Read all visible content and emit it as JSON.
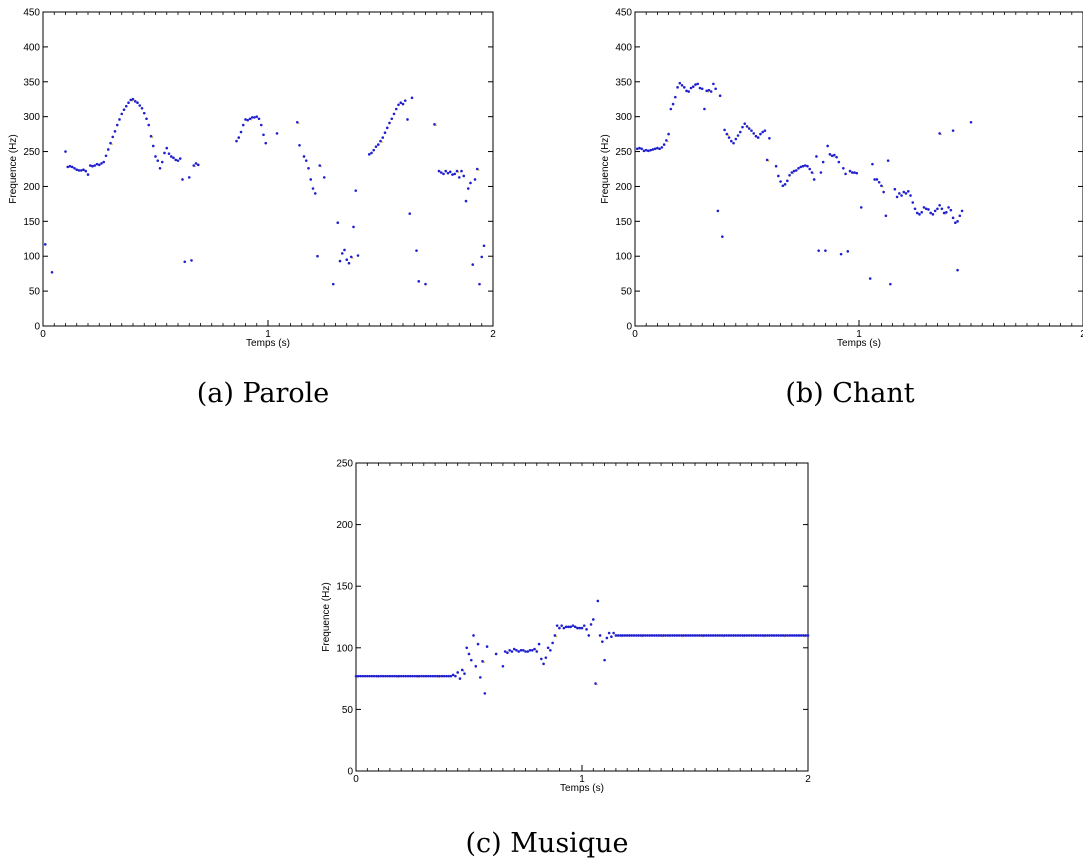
{
  "captions": {
    "a": "(a) Parole",
    "b": "(b) Chant",
    "c": "(c) Musique"
  },
  "colors": {
    "points": "#1f1fd0",
    "stray_points": "#e0b020",
    "axes": "#000000"
  },
  "chart_data": [
    {
      "id": "a",
      "type": "scatter",
      "xlabel": "Temps (s)",
      "ylabel": "Frequence (Hz)",
      "xlim": [
        0,
        2
      ],
      "ylim": [
        0,
        450
      ],
      "xticks": [
        0,
        1,
        2
      ],
      "yticks": [
        0,
        50,
        100,
        150,
        200,
        250,
        300,
        350,
        400,
        450
      ],
      "grid": false,
      "points": [
        [
          0.01,
          117
        ],
        [
          0.04,
          77
        ],
        [
          0.1,
          250
        ],
        [
          0.11,
          228
        ],
        [
          0.12,
          229
        ],
        [
          0.13,
          228
        ],
        [
          0.14,
          226
        ],
        [
          0.15,
          224
        ],
        [
          0.16,
          223
        ],
        [
          0.17,
          223
        ],
        [
          0.18,
          224
        ],
        [
          0.19,
          222
        ],
        [
          0.2,
          217
        ],
        [
          0.21,
          230
        ],
        [
          0.22,
          229
        ],
        [
          0.23,
          230
        ],
        [
          0.24,
          232
        ],
        [
          0.25,
          231
        ],
        [
          0.26,
          233
        ],
        [
          0.27,
          235
        ],
        [
          0.28,
          244
        ],
        [
          0.29,
          253
        ],
        [
          0.3,
          262
        ],
        [
          0.31,
          271
        ],
        [
          0.32,
          279
        ],
        [
          0.33,
          288
        ],
        [
          0.34,
          296
        ],
        [
          0.35,
          304
        ],
        [
          0.36,
          310
        ],
        [
          0.37,
          315
        ],
        [
          0.38,
          320
        ],
        [
          0.39,
          324
        ],
        [
          0.4,
          325
        ],
        [
          0.41,
          322
        ],
        [
          0.42,
          320
        ],
        [
          0.43,
          316
        ],
        [
          0.44,
          312
        ],
        [
          0.45,
          305
        ],
        [
          0.46,
          297
        ],
        [
          0.47,
          288
        ],
        [
          0.48,
          272
        ],
        [
          0.49,
          258
        ],
        [
          0.5,
          243
        ],
        [
          0.51,
          237
        ],
        [
          0.52,
          226
        ],
        [
          0.53,
          235
        ],
        [
          0.54,
          248
        ],
        [
          0.55,
          255
        ],
        [
          0.56,
          247
        ],
        [
          0.57,
          243
        ],
        [
          0.58,
          241
        ],
        [
          0.59,
          238
        ],
        [
          0.6,
          237
        ],
        [
          0.61,
          240
        ],
        [
          0.62,
          210
        ],
        [
          0.63,
          92
        ],
        [
          0.65,
          213
        ],
        [
          0.66,
          94
        ],
        [
          0.67,
          230
        ],
        [
          0.68,
          233
        ],
        [
          0.69,
          231
        ],
        [
          0.86,
          265
        ],
        [
          0.87,
          270
        ],
        [
          0.88,
          278
        ],
        [
          0.89,
          288
        ],
        [
          0.9,
          296
        ],
        [
          0.91,
          295
        ],
        [
          0.92,
          297
        ],
        [
          0.93,
          299
        ],
        [
          0.94,
          299
        ],
        [
          0.95,
          300
        ],
        [
          0.96,
          297
        ],
        [
          0.97,
          288
        ],
        [
          0.98,
          274
        ],
        [
          0.99,
          262
        ],
        [
          1.04,
          276
        ],
        [
          1.13,
          292
        ],
        [
          1.14,
          259
        ],
        [
          1.16,
          243
        ],
        [
          1.17,
          237
        ],
        [
          1.18,
          226
        ],
        [
          1.19,
          210
        ],
        [
          1.2,
          197
        ],
        [
          1.21,
          190
        ],
        [
          1.22,
          100
        ],
        [
          1.23,
          230
        ],
        [
          1.25,
          213
        ],
        [
          1.29,
          60
        ],
        [
          1.31,
          148
        ],
        [
          1.32,
          93
        ],
        [
          1.33,
          104
        ],
        [
          1.34,
          109
        ],
        [
          1.35,
          95
        ],
        [
          1.36,
          90
        ],
        [
          1.37,
          99
        ],
        [
          1.38,
          142
        ],
        [
          1.39,
          194
        ],
        [
          1.4,
          101
        ],
        [
          1.45,
          246
        ],
        [
          1.46,
          248
        ],
        [
          1.47,
          252
        ],
        [
          1.48,
          257
        ],
        [
          1.49,
          260
        ],
        [
          1.5,
          265
        ],
        [
          1.51,
          270
        ],
        [
          1.52,
          277
        ],
        [
          1.53,
          284
        ],
        [
          1.54,
          291
        ],
        [
          1.55,
          297
        ],
        [
          1.56,
          304
        ],
        [
          1.57,
          311
        ],
        [
          1.58,
          317
        ],
        [
          1.59,
          320
        ],
        [
          1.6,
          318
        ],
        [
          1.61,
          323
        ],
        [
          1.62,
          296
        ],
        [
          1.63,
          161
        ],
        [
          1.64,
          327
        ],
        [
          1.66,
          108
        ],
        [
          1.67,
          64
        ],
        [
          1.7,
          60
        ],
        [
          1.74,
          289
        ],
        [
          1.76,
          222
        ],
        [
          1.77,
          220
        ],
        [
          1.78,
          218
        ],
        [
          1.79,
          222
        ],
        [
          1.8,
          219
        ],
        [
          1.81,
          221
        ],
        [
          1.82,
          217
        ],
        [
          1.83,
          218
        ],
        [
          1.84,
          222
        ],
        [
          1.85,
          213
        ],
        [
          1.86,
          222
        ],
        [
          1.87,
          215
        ],
        [
          1.88,
          179
        ],
        [
          1.89,
          197
        ],
        [
          1.9,
          205
        ],
        [
          1.91,
          88
        ],
        [
          1.92,
          210
        ],
        [
          1.93,
          225
        ],
        [
          1.94,
          60
        ],
        [
          1.95,
          99
        ],
        [
          1.96,
          115
        ]
      ]
    },
    {
      "id": "b",
      "type": "scatter",
      "xlabel": "Temps (s)",
      "ylabel": "Frequence (Hz)",
      "xlim": [
        0,
        2
      ],
      "ylim": [
        0,
        450
      ],
      "xticks": [
        0,
        1,
        2
      ],
      "yticks": [
        0,
        50,
        100,
        150,
        200,
        250,
        300,
        350,
        400,
        450
      ],
      "grid": false,
      "points": [
        [
          0.01,
          254
        ],
        [
          0.02,
          255
        ],
        [
          0.03,
          254
        ],
        [
          0.04,
          251
        ],
        [
          0.05,
          252
        ],
        [
          0.06,
          251
        ],
        [
          0.07,
          252
        ],
        [
          0.08,
          253
        ],
        [
          0.09,
          254
        ],
        [
          0.1,
          255
        ],
        [
          0.11,
          254
        ],
        [
          0.12,
          256
        ],
        [
          0.13,
          260
        ],
        [
          0.14,
          266
        ],
        [
          0.15,
          275
        ],
        [
          0.16,
          311
        ],
        [
          0.17,
          318
        ],
        [
          0.18,
          328
        ],
        [
          0.19,
          342
        ],
        [
          0.2,
          348
        ],
        [
          0.21,
          345
        ],
        [
          0.22,
          342
        ],
        [
          0.23,
          337
        ],
        [
          0.24,
          336
        ],
        [
          0.25,
          341
        ],
        [
          0.26,
          343
        ],
        [
          0.27,
          346
        ],
        [
          0.28,
          347
        ],
        [
          0.29,
          341
        ],
        [
          0.3,
          340
        ],
        [
          0.31,
          311
        ],
        [
          0.32,
          337
        ],
        [
          0.33,
          338
        ],
        [
          0.34,
          336
        ],
        [
          0.35,
          347
        ],
        [
          0.36,
          340
        ],
        [
          0.37,
          165
        ],
        [
          0.38,
          330
        ],
        [
          0.39,
          128
        ],
        [
          0.4,
          281
        ],
        [
          0.41,
          275
        ],
        [
          0.42,
          270
        ],
        [
          0.43,
          265
        ],
        [
          0.44,
          262
        ],
        [
          0.45,
          268
        ],
        [
          0.46,
          273
        ],
        [
          0.47,
          278
        ],
        [
          0.48,
          285
        ],
        [
          0.49,
          290
        ],
        [
          0.5,
          286
        ],
        [
          0.51,
          283
        ],
        [
          0.52,
          280
        ],
        [
          0.53,
          276
        ],
        [
          0.54,
          272
        ],
        [
          0.55,
          270
        ],
        [
          0.56,
          275
        ],
        [
          0.57,
          278
        ],
        [
          0.58,
          280
        ],
        [
          0.59,
          238
        ],
        [
          0.6,
          269
        ],
        [
          0.63,
          229
        ],
        [
          0.64,
          215
        ],
        [
          0.65,
          207
        ],
        [
          0.66,
          201
        ],
        [
          0.67,
          203
        ],
        [
          0.68,
          208
        ],
        [
          0.69,
          216
        ],
        [
          0.7,
          220
        ],
        [
          0.71,
          222
        ],
        [
          0.72,
          223
        ],
        [
          0.73,
          226
        ],
        [
          0.74,
          228
        ],
        [
          0.75,
          229
        ],
        [
          0.76,
          230
        ],
        [
          0.77,
          229
        ],
        [
          0.78,
          225
        ],
        [
          0.79,
          220
        ],
        [
          0.8,
          210
        ],
        [
          0.81,
          243
        ],
        [
          0.82,
          108
        ],
        [
          0.83,
          220
        ],
        [
          0.84,
          235
        ],
        [
          0.85,
          108
        ],
        [
          0.86,
          258
        ],
        [
          0.87,
          246
        ],
        [
          0.88,
          244
        ],
        [
          0.89,
          245
        ],
        [
          0.9,
          242
        ],
        [
          0.91,
          235
        ],
        [
          0.92,
          103
        ],
        [
          0.93,
          226
        ],
        [
          0.94,
          218
        ],
        [
          0.95,
          107
        ],
        [
          0.96,
          222
        ],
        [
          0.97,
          220
        ],
        [
          0.98,
          220
        ],
        [
          0.99,
          219
        ],
        [
          1.01,
          170
        ],
        [
          1.05,
          68
        ],
        [
          1.06,
          232
        ],
        [
          1.07,
          210
        ],
        [
          1.08,
          210
        ],
        [
          1.09,
          206
        ],
        [
          1.1,
          201
        ],
        [
          1.11,
          192
        ],
        [
          1.12,
          158
        ],
        [
          1.13,
          237
        ],
        [
          1.14,
          60
        ],
        [
          1.16,
          196
        ],
        [
          1.17,
          185
        ],
        [
          1.18,
          190
        ],
        [
          1.19,
          187
        ],
        [
          1.2,
          192
        ],
        [
          1.21,
          190
        ],
        [
          1.22,
          193
        ],
        [
          1.23,
          187
        ],
        [
          1.24,
          177
        ],
        [
          1.25,
          168
        ],
        [
          1.26,
          162
        ],
        [
          1.27,
          160
        ],
        [
          1.28,
          163
        ],
        [
          1.29,
          170
        ],
        [
          1.3,
          168
        ],
        [
          1.31,
          167
        ],
        [
          1.32,
          162
        ],
        [
          1.33,
          160
        ],
        [
          1.34,
          165
        ],
        [
          1.35,
          168
        ],
        [
          1.36,
          173
        ],
        [
          1.37,
          168
        ],
        [
          1.38,
          162
        ],
        [
          1.39,
          163
        ],
        [
          1.4,
          170
        ],
        [
          1.41,
          166
        ],
        [
          1.42,
          155
        ],
        [
          1.43,
          148
        ],
        [
          1.44,
          150
        ],
        [
          1.45,
          158
        ],
        [
          1.46,
          165
        ],
        [
          1.36,
          276
        ],
        [
          1.44,
          80
        ],
        [
          1.42,
          280
        ],
        [
          1.5,
          292
        ]
      ]
    },
    {
      "id": "c",
      "type": "scatter",
      "xlabel": "Temps (s)",
      "ylabel": "Frequence (Hz)",
      "xlim": [
        0,
        2
      ],
      "ylim": [
        0,
        250
      ],
      "xticks": [
        0,
        1,
        2
      ],
      "yticks": [
        0,
        50,
        100,
        150,
        200,
        250
      ],
      "grid": false,
      "series_rules": [
        {
          "x_from": 0.0,
          "x_to": 0.42,
          "step": 0.01,
          "y": 77
        },
        {
          "x_from": 1.15,
          "x_to": 2.0,
          "step": 0.01,
          "y": 110
        }
      ],
      "points": [
        [
          0.43,
          78
        ],
        [
          0.44,
          77
        ],
        [
          0.45,
          80
        ],
        [
          0.46,
          75
        ],
        [
          0.47,
          82
        ],
        [
          0.48,
          79
        ],
        [
          0.49,
          100
        ],
        [
          0.5,
          95
        ],
        [
          0.51,
          90
        ],
        [
          0.52,
          110
        ],
        [
          0.53,
          85
        ],
        [
          0.54,
          103
        ],
        [
          0.55,
          76
        ],
        [
          0.56,
          89
        ],
        [
          0.57,
          63
        ],
        [
          0.58,
          101
        ],
        [
          0.62,
          95
        ],
        [
          0.65,
          85
        ],
        [
          0.66,
          97
        ],
        [
          0.67,
          96
        ],
        [
          0.68,
          98
        ],
        [
          0.69,
          97
        ],
        [
          0.7,
          99
        ],
        [
          0.71,
          98
        ],
        [
          0.72,
          97
        ],
        [
          0.73,
          98
        ],
        [
          0.74,
          98
        ],
        [
          0.75,
          97
        ],
        [
          0.76,
          97
        ],
        [
          0.77,
          98
        ],
        [
          0.78,
          98
        ],
        [
          0.79,
          99
        ],
        [
          0.8,
          97
        ],
        [
          0.81,
          103
        ],
        [
          0.82,
          91
        ],
        [
          0.83,
          87
        ],
        [
          0.84,
          92
        ],
        [
          0.85,
          100
        ],
        [
          0.86,
          98
        ],
        [
          0.87,
          104
        ],
        [
          0.88,
          110
        ],
        [
          0.89,
          118
        ],
        [
          0.9,
          116
        ],
        [
          0.91,
          118
        ],
        [
          0.92,
          116
        ],
        [
          0.93,
          117
        ],
        [
          0.94,
          117
        ],
        [
          0.95,
          117
        ],
        [
          0.96,
          118
        ],
        [
          0.97,
          117
        ],
        [
          0.98,
          116
        ],
        [
          0.99,
          116
        ],
        [
          1.0,
          116
        ],
        [
          1.01,
          118
        ],
        [
          1.02,
          115
        ],
        [
          1.03,
          110
        ],
        [
          1.04,
          119
        ],
        [
          1.05,
          123
        ],
        [
          1.06,
          71
        ],
        [
          1.07,
          138
        ],
        [
          1.08,
          110
        ],
        [
          1.09,
          105
        ],
        [
          1.1,
          90
        ],
        [
          1.11,
          108
        ],
        [
          1.12,
          112
        ],
        [
          1.13,
          109
        ],
        [
          1.14,
          112
        ]
      ]
    }
  ]
}
